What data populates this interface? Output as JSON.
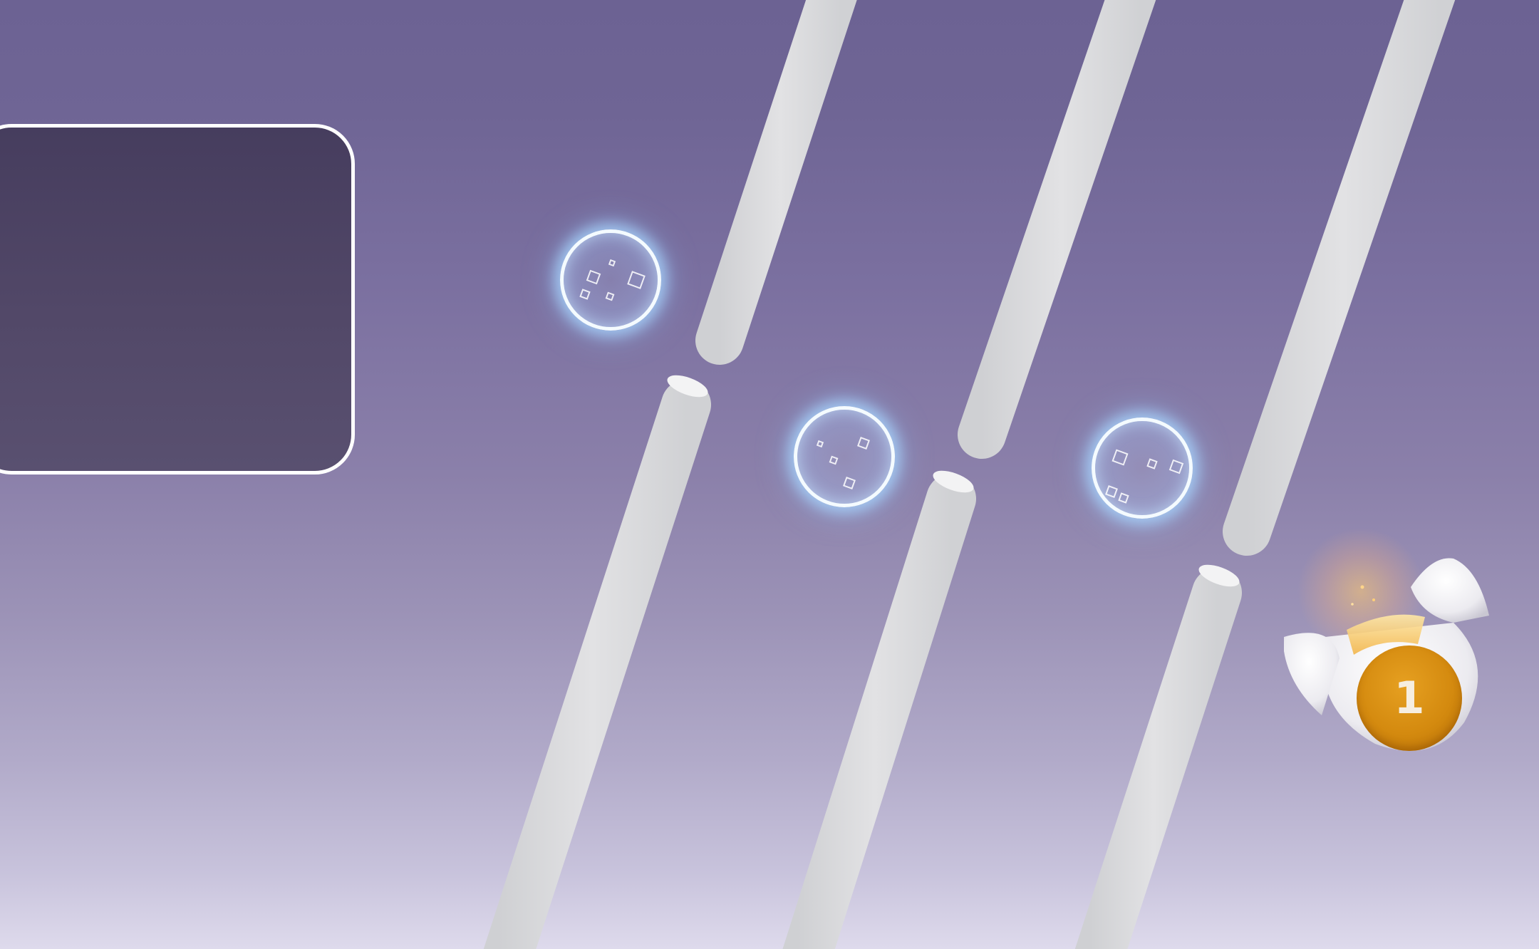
{
  "scene": {
    "background_top": "#6c6293",
    "background_bottom": "#dedaec",
    "panel_fill": "#4f4566",
    "panel_border": "#ffffff",
    "pillar_color": "#dcdcdc"
  },
  "player": {
    "icon": "egg-ball-icon",
    "badge_color": "#d48a0f",
    "counter": "1"
  },
  "orbs": [
    {
      "name": "bubble-orb-1",
      "icon": "sparkle-bubble-icon"
    },
    {
      "name": "bubble-orb-2",
      "icon": "sparkle-bubble-icon"
    },
    {
      "name": "bubble-orb-3",
      "icon": "sparkle-bubble-icon"
    }
  ]
}
